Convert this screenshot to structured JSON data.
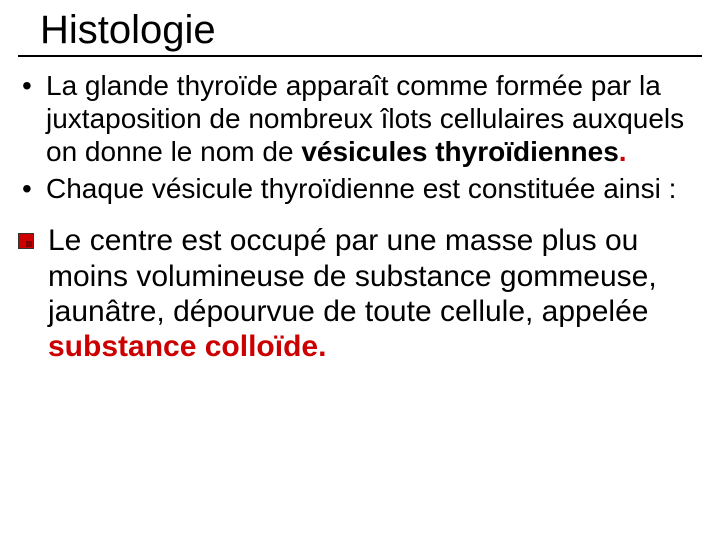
{
  "colors": {
    "background": "#ffffff",
    "text": "#000000",
    "emphasis": "#cc0000",
    "rule": "#000000",
    "square_bullet": "#cc0000"
  },
  "typography": {
    "title_fontsize": 40,
    "bullet_fontsize": 28,
    "square_fontsize": 30,
    "font_family": "Arial"
  },
  "title": "Histologie",
  "bullets": [
    {
      "pre": "La glande thyroïde apparaît comme formée par la juxtaposition de nombreux îlots cellulaires auxquels on donne le nom de ",
      "em": "vésicules thyroïdiennes",
      "post": "."
    },
    {
      "pre": "Chaque vésicule thyroïdienne est constituée ainsi :",
      "em": "",
      "post": ""
    }
  ],
  "square_items": [
    {
      "pre": "Le centre est occupé par une masse plus ou moins volumineuse de substance gommeuse, jaunâtre, dépourvue de toute cellule, appelée ",
      "em": "substance colloïde",
      "post": "."
    }
  ]
}
